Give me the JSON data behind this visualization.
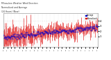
{
  "title": "Milwaukee Weather Wind Direction  Normalized and Average  (24 Hours) (New)",
  "title_line1": "Milwaukee Weather Wind Direction",
  "title_line2": "Normalized and Average",
  "title_line3": "(24 Hours) (New)",
  "background_color": "#ffffff",
  "plot_bg_color": "#ffffff",
  "bar_color": "#dd0000",
  "avg_color": "#0000cc",
  "n_points": 200,
  "ylim": [
    -1.0,
    5.5
  ],
  "y_ticks": [
    1,
    2,
    3,
    4
  ],
  "legend_bar_label": "Normalized",
  "legend_avg_label": "Average",
  "grid_color": "#cccccc",
  "spine_color": "#888888"
}
